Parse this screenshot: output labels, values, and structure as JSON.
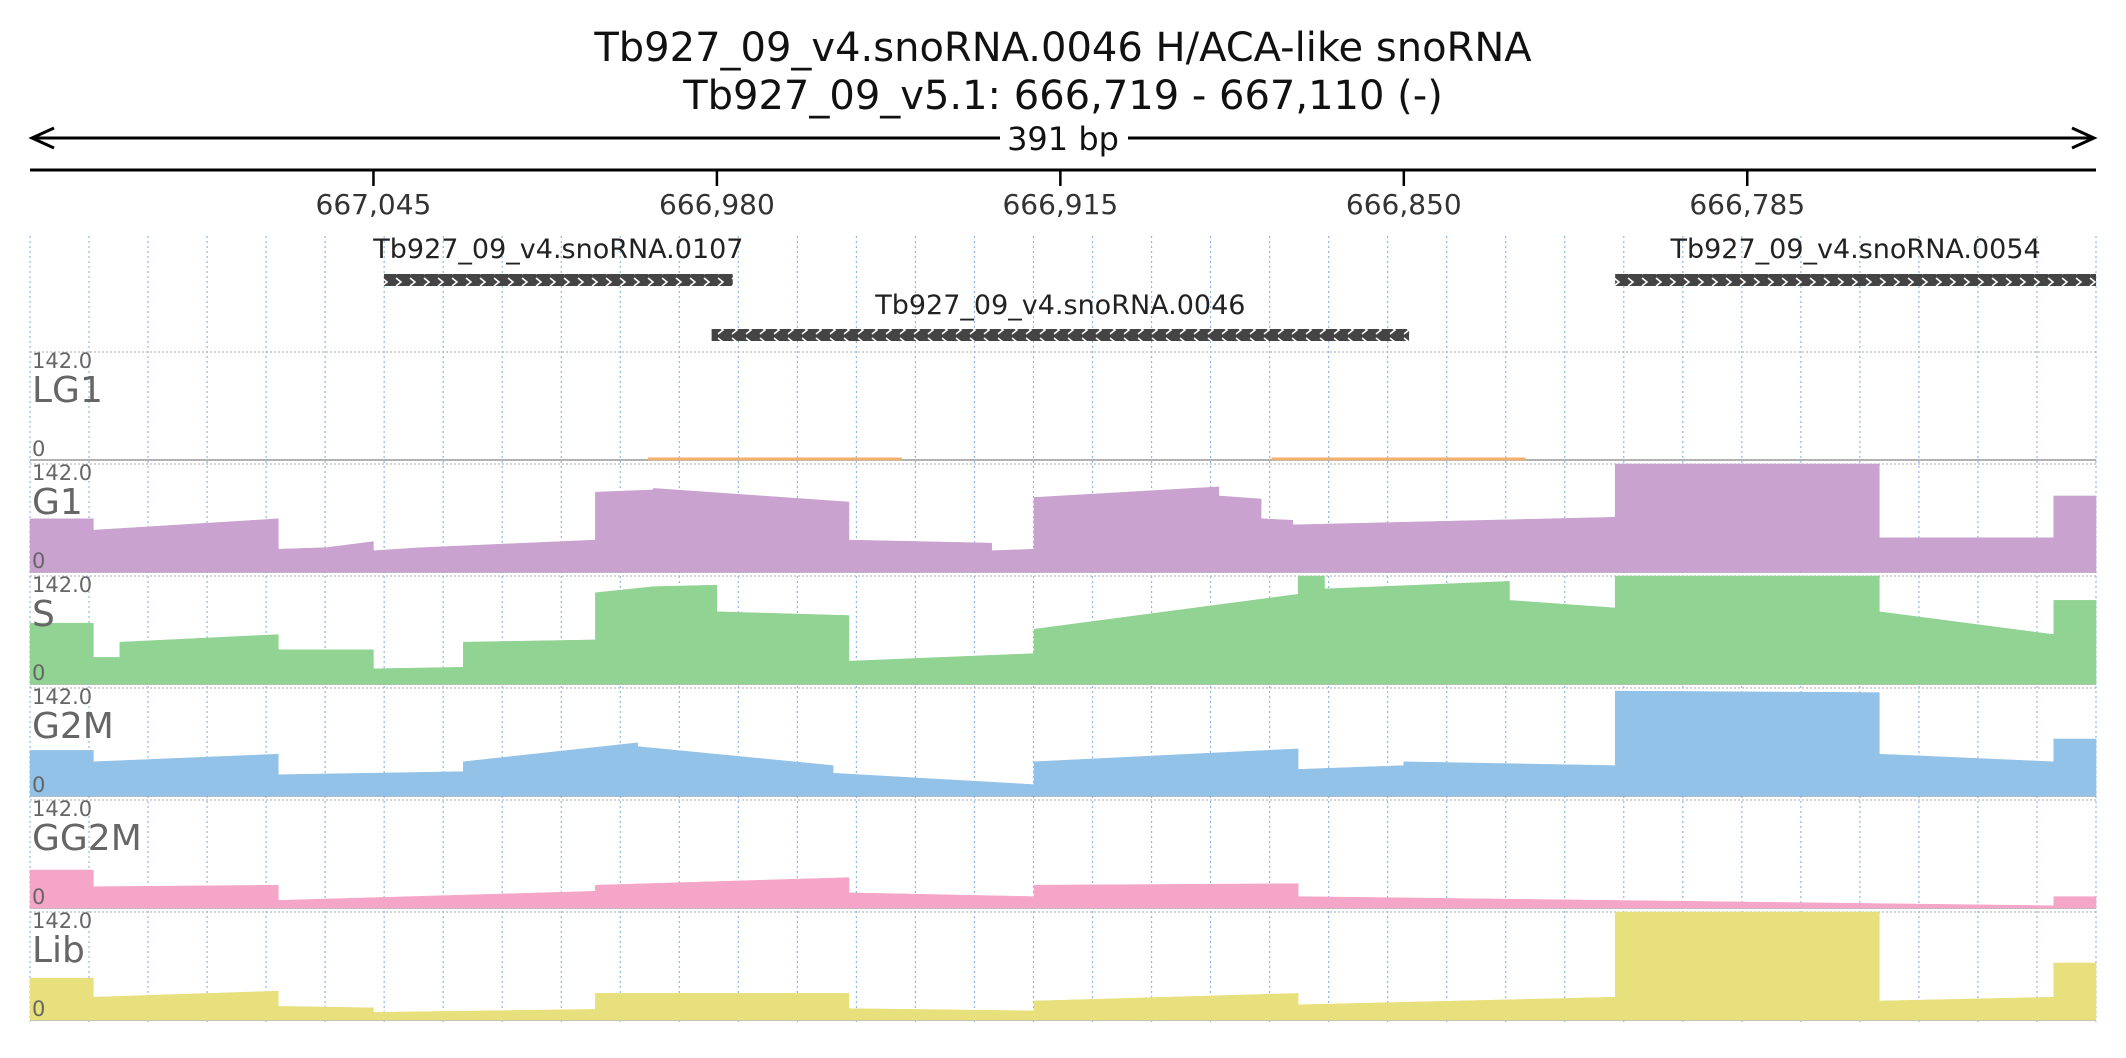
{
  "header": {
    "title": "Tb927_09_v4.snoRNA.0046  H/ACA-like snoRNA",
    "subtitle": "Tb927_09_v5.1: 666,719 - 667,110 (-)",
    "span_label": "391 bp"
  },
  "chart_data": {
    "type": "area",
    "strand": "-",
    "xlim": [
      667110,
      666719
    ],
    "x_ticks": [
      {
        "value": 667045,
        "label": "667,045"
      },
      {
        "value": 666980,
        "label": "666,980"
      },
      {
        "value": 666915,
        "label": "666,915"
      },
      {
        "value": 666850,
        "label": "666,850"
      },
      {
        "value": 666785,
        "label": "666,785"
      }
    ],
    "genes": [
      {
        "name": "Tb927_09_v4.snoRNA.0107",
        "start": 667043,
        "end": 666977,
        "row": 0
      },
      {
        "name": "Tb927_09_v4.snoRNA.0054",
        "start": 666810,
        "end": 666719,
        "row": 0
      },
      {
        "name": "Tb927_09_v4.snoRNA.0046",
        "start": 666981,
        "end": 666849,
        "row": 1
      }
    ],
    "track_scale": {
      "max_label": "142.0",
      "min_label": "0",
      "ylim": [
        0,
        142
      ]
    },
    "tracks": [
      {
        "name": "LG1",
        "color": "#f4b06a",
        "segments": [
          {
            "from": 666993,
            "to": 666945,
            "values": [
              3,
              3
            ]
          },
          {
            "from": 666875,
            "to": 666827,
            "values": [
              3,
              3
            ]
          }
        ]
      },
      {
        "name": "G1",
        "color": "#c9a2cf",
        "segments": [
          {
            "from": 667110,
            "to": 667098,
            "values": [
              70,
              70
            ]
          },
          {
            "from": 667098,
            "to": 667063,
            "values": [
              55,
              70
            ]
          },
          {
            "from": 667063,
            "to": 667054,
            "values": [
              30,
              32
            ]
          },
          {
            "from": 667054,
            "to": 667045,
            "values": [
              32,
              40
            ]
          },
          {
            "from": 667045,
            "to": 667036,
            "values": [
              28,
              32
            ]
          },
          {
            "from": 667036,
            "to": 667003,
            "values": [
              32,
              42
            ]
          },
          {
            "from": 667003,
            "to": 666992,
            "values": [
              105,
              108
            ]
          },
          {
            "from": 666992,
            "to": 666955,
            "values": [
              110,
              92
            ]
          },
          {
            "from": 666955,
            "to": 666928,
            "values": [
              42,
              38
            ]
          },
          {
            "from": 666928,
            "to": 666920,
            "values": [
              28,
              30
            ]
          },
          {
            "from": 666920,
            "to": 666885,
            "values": [
              98,
              112
            ]
          },
          {
            "from": 666885,
            "to": 666877,
            "values": [
              100,
              96
            ]
          },
          {
            "from": 666877,
            "to": 666871,
            "values": [
              70,
              68
            ]
          },
          {
            "from": 666871,
            "to": 666810,
            "values": [
              62,
              72
            ]
          },
          {
            "from": 666810,
            "to": 666760,
            "values": [
              142,
              142
            ]
          },
          {
            "from": 666760,
            "to": 666727,
            "values": [
              45,
              45
            ]
          },
          {
            "from": 666727,
            "to": 666719,
            "values": [
              100,
              100
            ]
          }
        ]
      },
      {
        "name": "S",
        "color": "#90d392",
        "segments": [
          {
            "from": 667110,
            "to": 667098,
            "values": [
              80,
              80
            ]
          },
          {
            "from": 667098,
            "to": 667093,
            "values": [
              35,
              35
            ]
          },
          {
            "from": 667093,
            "to": 667063,
            "values": [
              55,
              65
            ]
          },
          {
            "from": 667063,
            "to": 667045,
            "values": [
              45,
              45
            ]
          },
          {
            "from": 667045,
            "to": 667028,
            "values": [
              20,
              22
            ]
          },
          {
            "from": 667028,
            "to": 667003,
            "values": [
              55,
              58
            ]
          },
          {
            "from": 667003,
            "to": 666992,
            "values": [
              120,
              128
            ]
          },
          {
            "from": 666992,
            "to": 666980,
            "values": [
              128,
              130
            ]
          },
          {
            "from": 666980,
            "to": 666955,
            "values": [
              95,
              90
            ]
          },
          {
            "from": 666955,
            "to": 666920,
            "values": [
              30,
              40
            ]
          },
          {
            "from": 666920,
            "to": 666870,
            "values": [
              72,
              118
            ]
          },
          {
            "from": 666870,
            "to": 666865,
            "values": [
              142,
              142
            ]
          },
          {
            "from": 666865,
            "to": 666830,
            "values": [
              125,
              135
            ]
          },
          {
            "from": 666830,
            "to": 666810,
            "values": [
              110,
              100
            ]
          },
          {
            "from": 666810,
            "to": 666760,
            "values": [
              142,
              142
            ]
          },
          {
            "from": 666760,
            "to": 666727,
            "values": [
              95,
              65
            ]
          },
          {
            "from": 666727,
            "to": 666719,
            "values": [
              110,
              110
            ]
          }
        ]
      },
      {
        "name": "G2M",
        "color": "#92c2e8",
        "segments": [
          {
            "from": 667110,
            "to": 667098,
            "values": [
              60,
              60
            ]
          },
          {
            "from": 667098,
            "to": 667063,
            "values": [
              45,
              55
            ]
          },
          {
            "from": 667063,
            "to": 667028,
            "values": [
              28,
              32
            ]
          },
          {
            "from": 667028,
            "to": 666995,
            "values": [
              45,
              70
            ]
          },
          {
            "from": 666995,
            "to": 666958,
            "values": [
              65,
              40
            ]
          },
          {
            "from": 666958,
            "to": 666920,
            "values": [
              30,
              15
            ]
          },
          {
            "from": 666920,
            "to": 666870,
            "values": [
              45,
              62
            ]
          },
          {
            "from": 666870,
            "to": 666850,
            "values": [
              35,
              40
            ]
          },
          {
            "from": 666850,
            "to": 666810,
            "values": [
              45,
              40
            ]
          },
          {
            "from": 666810,
            "to": 666760,
            "values": [
              138,
              136
            ]
          },
          {
            "from": 666760,
            "to": 666727,
            "values": [
              55,
              45
            ]
          },
          {
            "from": 666727,
            "to": 666719,
            "values": [
              75,
              75
            ]
          }
        ]
      },
      {
        "name": "GG2M",
        "color": "#f5a6c8",
        "segments": [
          {
            "from": 667110,
            "to": 667098,
            "values": [
              50,
              50
            ]
          },
          {
            "from": 667098,
            "to": 667063,
            "values": [
              28,
              30
            ]
          },
          {
            "from": 667063,
            "to": 667003,
            "values": [
              10,
              22
            ]
          },
          {
            "from": 667003,
            "to": 666955,
            "values": [
              30,
              40
            ]
          },
          {
            "from": 666955,
            "to": 666920,
            "values": [
              20,
              15
            ]
          },
          {
            "from": 666920,
            "to": 666870,
            "values": [
              30,
              32
            ]
          },
          {
            "from": 666870,
            "to": 666727,
            "values": [
              15,
              3
            ]
          },
          {
            "from": 666727,
            "to": 666719,
            "values": [
              15,
              15
            ]
          }
        ]
      },
      {
        "name": "Lib",
        "color": "#e8e07c",
        "segments": [
          {
            "from": 667110,
            "to": 667098,
            "values": [
              55,
              55
            ]
          },
          {
            "from": 667098,
            "to": 667063,
            "values": [
              30,
              38
            ]
          },
          {
            "from": 667063,
            "to": 667045,
            "values": [
              18,
              16
            ]
          },
          {
            "from": 667045,
            "to": 667003,
            "values": [
              10,
              14
            ]
          },
          {
            "from": 667003,
            "to": 666955,
            "values": [
              35,
              35
            ]
          },
          {
            "from": 666955,
            "to": 666920,
            "values": [
              15,
              12
            ]
          },
          {
            "from": 666920,
            "to": 666870,
            "values": [
              25,
              35
            ]
          },
          {
            "from": 666870,
            "to": 666810,
            "values": [
              20,
              30
            ]
          },
          {
            "from": 666810,
            "to": 666760,
            "values": [
              142,
              142
            ]
          },
          {
            "from": 666760,
            "to": 666727,
            "values": [
              25,
              30
            ]
          },
          {
            "from": 666727,
            "to": 666719,
            "values": [
              75,
              75
            ]
          }
        ]
      }
    ]
  }
}
